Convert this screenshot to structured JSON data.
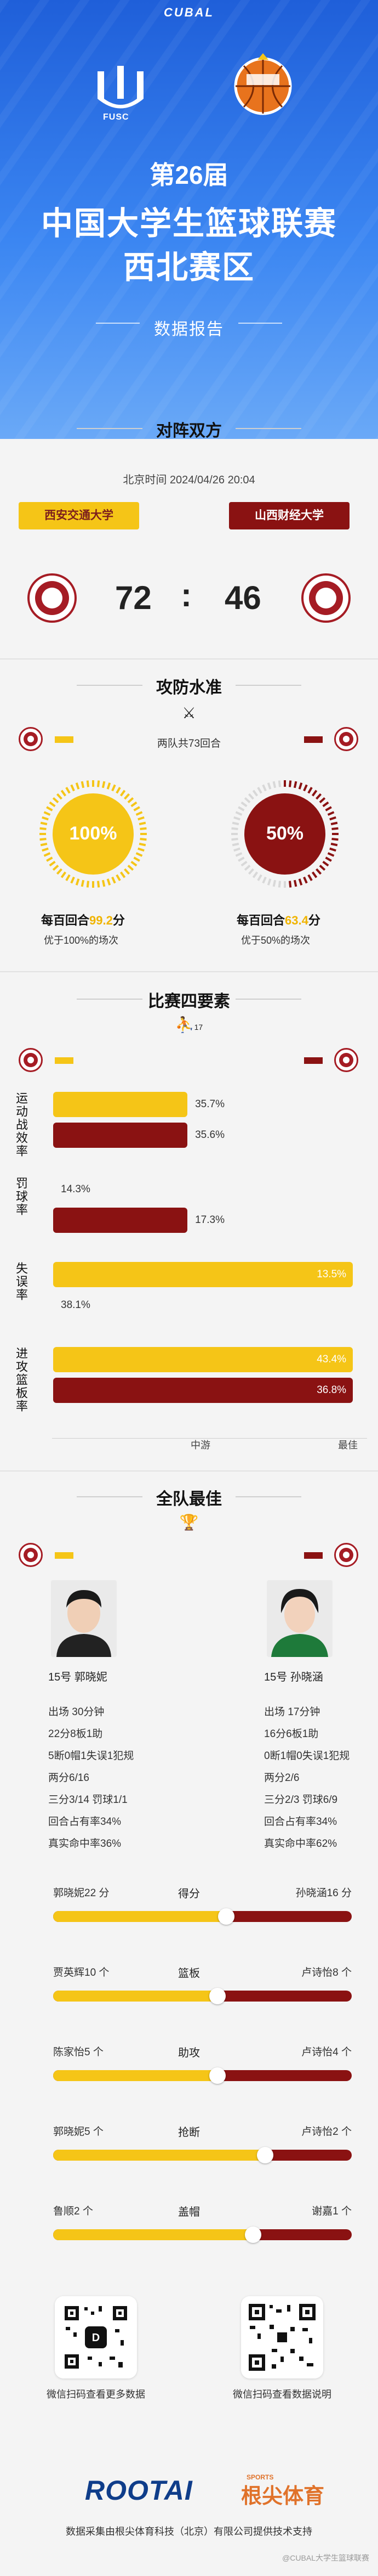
{
  "header": {
    "brand": "CUBAL",
    "fusc": "FUSC",
    "edition": "第26届",
    "title_line1": "中国大学生篮球联赛",
    "title_line2": "西北赛区",
    "subtitle": "数据报告"
  },
  "matchup": {
    "section_title": "对阵双方",
    "time": "北京时间  2024/04/26 20:04",
    "home_team": "西安交通大学",
    "away_team": "山西财经大学",
    "home_score": "72",
    "away_score": "46",
    "colon": ":"
  },
  "offense_defense": {
    "section_title": "攻防水准",
    "note": "两队共73回合",
    "home_pct": "100%",
    "away_pct": "50%",
    "home_pct_value": 1.0,
    "away_pct_value": 0.5,
    "home_ppp_prefix": "每百回合",
    "home_ppp_value": "99.2",
    "home_ppp_suffix": "分",
    "away_ppp_prefix": "每百回合",
    "away_ppp_value": "63.4",
    "away_ppp_suffix": "分",
    "home_better": "优于100%的场次",
    "away_better": "优于50%的场次"
  },
  "four_factors": {
    "section_title": "比赛四要素",
    "section_icon_text": "17",
    "axis_mid": "中游",
    "axis_max": "最佳",
    "factors": [
      {
        "label": "运动战效率",
        "home": "35.7%",
        "away": "35.6%",
        "home_level": 0.43,
        "away_level": 0.43
      },
      {
        "label": "罚球率",
        "home": "14.3%",
        "away": "17.3%",
        "home_level": 0.0,
        "away_level": 0.43
      },
      {
        "label": "失误率",
        "home": "13.5%",
        "away": "38.1%",
        "home_level": 0.96,
        "away_level": 0.0
      },
      {
        "label": "进攻篮板率",
        "home": "43.4%",
        "away": "36.8%",
        "home_level": 0.96,
        "away_level": 0.96
      }
    ]
  },
  "best_players": {
    "section_title": "全队最佳",
    "home": {
      "name": "15号  郭晓妮",
      "stats": [
        "出场  30分钟",
        "22分8板1助",
        "5断0帽1失误1犯规",
        "两分6/16",
        "三分3/14  罚球1/1",
        "回合占有率34%",
        "真实命中率36%"
      ]
    },
    "away": {
      "name": "15号  孙晓涵",
      "stats": [
        "出场  17分钟",
        "16分6板1助",
        "0断1帽0失误1犯规",
        "两分2/6",
        "三分2/3  罚球6/9",
        "回合占有率34%",
        "真实命中率62%"
      ]
    }
  },
  "comparisons": [
    {
      "center": "得分",
      "left": "郭晓妮22 分",
      "right": "孙晓涵16 分",
      "share": 0.58
    },
    {
      "center": "篮板",
      "left": "贾英辉10 个",
      "right": "卢诗怡8 个",
      "share": 0.55
    },
    {
      "center": "助攻",
      "left": "陈家怡5 个",
      "right": "卢诗怡4 个",
      "share": 0.55
    },
    {
      "center": "抢断",
      "left": "郭晓妮5 个",
      "right": "卢诗怡2 个",
      "share": 0.71
    },
    {
      "center": "盖帽",
      "left": "鲁顺2 个",
      "right": "谢嘉1 个",
      "share": 0.67
    }
  ],
  "footer": {
    "qr_left_caption": "微信扫码查看更多数据",
    "qr_right_caption": "微信扫码查看数据说明",
    "brand": "ROOTAI",
    "brand_sports": "SPORTS",
    "brand_cn": "根尖体育",
    "note": "数据采集由根尖体育科技（北京）有限公司提供技术支持",
    "watermark": "@CUBAL大学生篮球联赛"
  },
  "colors": {
    "home": "#f5c517",
    "away": "#8a1212",
    "hero": "#2d74ea"
  }
}
